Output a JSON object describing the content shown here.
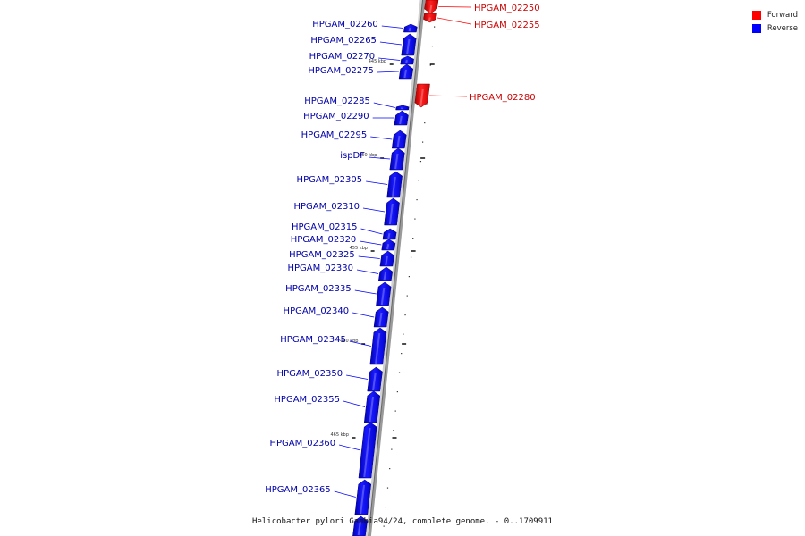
{
  "legend": {
    "items": [
      {
        "label": "Forward",
        "color": "#ff0000"
      },
      {
        "label": "Reverse",
        "color": "#0000ff"
      }
    ]
  },
  "caption": "Helicobacter pylori Gambia94/24, complete genome. - 0..1709911",
  "colors": {
    "forward": "#ff0000",
    "reverse": "#0000ff",
    "forward_text": "#cc0000",
    "reverse_text": "#0000aa",
    "backbone": "#888888"
  },
  "tick_labels": [
    "445 kbp",
    "450 kbp",
    "455 kbp",
    "460 kbp",
    "465 kbp"
  ],
  "forward_genes": [
    "HPGAM_02250",
    "HPGAM_02255",
    "HPGAM_02280"
  ],
  "reverse_genes": [
    "HPGAM_02260",
    "HPGAM_02265",
    "HPGAM_02270",
    "HPGAM_02275",
    "HPGAM_02285",
    "HPGAM_02290",
    "HPGAM_02295",
    "ispDF",
    "HPGAM_02305",
    "HPGAM_02310",
    "HPGAM_02315",
    "HPGAM_02320",
    "HPGAM_02325",
    "HPGAM_02330",
    "HPGAM_02335",
    "HPGAM_02340",
    "HPGAM_02345",
    "HPGAM_02350",
    "HPGAM_02355",
    "HPGAM_02360",
    "HPGAM_02365"
  ]
}
